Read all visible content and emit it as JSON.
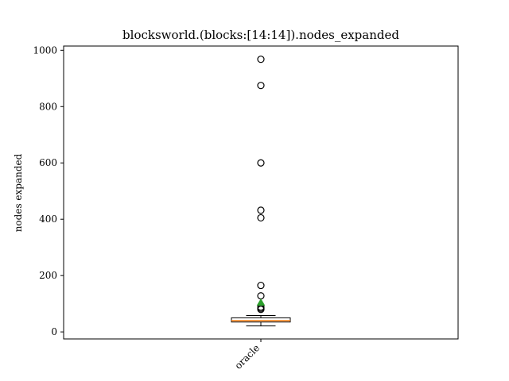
{
  "chart_data": {
    "type": "box",
    "title": "blocksworld.(blocks:[14:14]).nodes_expanded",
    "xlabel": "",
    "ylabel": "nodes expanded",
    "categories": [
      "oracle"
    ],
    "ylim": [
      -25,
      1015
    ],
    "yticks": [
      0,
      200,
      400,
      600,
      800,
      1000
    ],
    "boxes": [
      {
        "name": "oracle",
        "whisker_low": 21,
        "q1": 35,
        "median": 40,
        "q3": 50,
        "whisker_high": 58,
        "mean": 105,
        "outliers": [
          80,
          84,
          88,
          128,
          165,
          405,
          432,
          600,
          875,
          968
        ]
      }
    ],
    "colors": {
      "box_edge": "#000000",
      "median": "#ff7f0e",
      "mean_marker": "#2ca02c",
      "flier_edge": "#000000"
    },
    "grid": false,
    "legend": "none"
  }
}
